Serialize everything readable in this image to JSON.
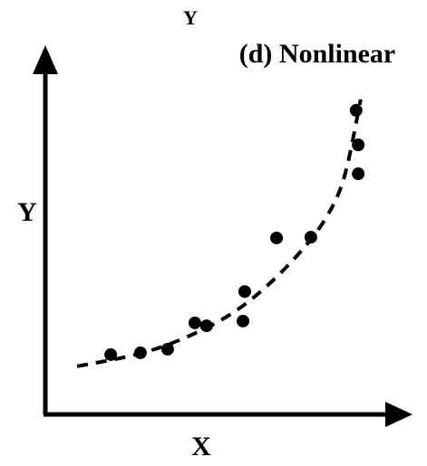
{
  "chart_data": {
    "type": "scatter",
    "title": "(d) Nonlinear",
    "annotation": "Y",
    "x_label": "X",
    "y_label": "Y",
    "xlim": [
      0,
      100
    ],
    "ylim": [
      0,
      100
    ],
    "color": "#000000",
    "x": [
      18.5,
      26.9,
      34.6,
      42.3,
      45.6,
      55.9,
      56.4,
      65.4,
      75.1,
      87.9,
      88.5,
      88.5
    ],
    "values": [
      16.4,
      16.9,
      17.9,
      25.1,
      24.3,
      25.6,
      33.7,
      48.4,
      48.6,
      83.4,
      73.9,
      66.0
    ],
    "curve": {
      "x": [
        9,
        25.6,
        38.5,
        51.3,
        61.5,
        71.8,
        79.5,
        84.6,
        89.2
      ],
      "values": [
        13.2,
        16.4,
        20.6,
        26.8,
        34.2,
        44.2,
        54.1,
        65.3,
        86.4
      ]
    }
  }
}
